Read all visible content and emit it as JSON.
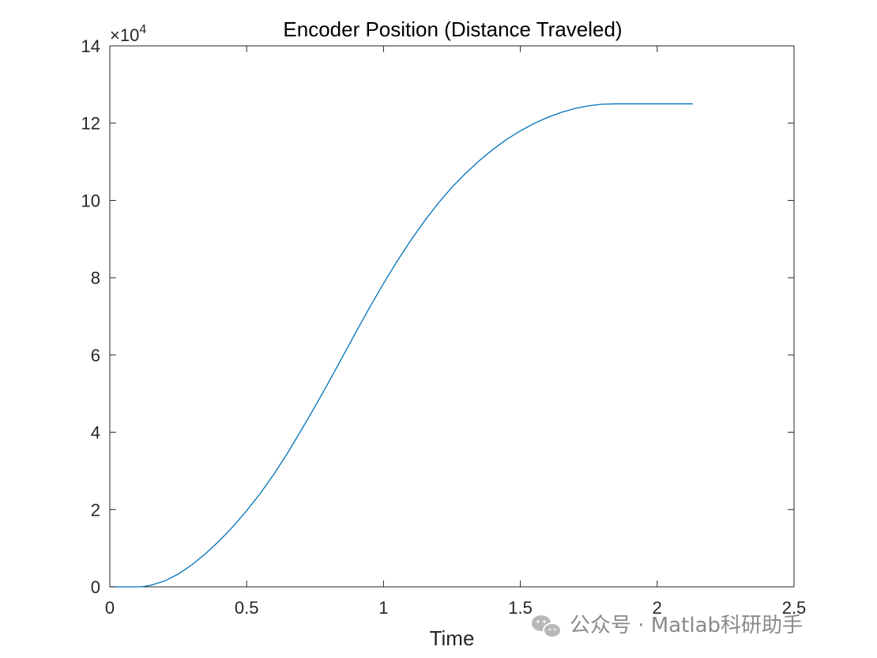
{
  "chart_data": {
    "type": "line",
    "title": "Encoder Position (Distance Traveled)",
    "xlabel": "Time",
    "ylabel": "",
    "xlim": [
      0,
      2.5
    ],
    "ylim": [
      0,
      140000
    ],
    "xticks": [
      0,
      0.5,
      1,
      1.5,
      2,
      2.5
    ],
    "xtick_labels": [
      "0",
      "0.5",
      "1",
      "1.5",
      "2",
      "2.5"
    ],
    "yticks": [
      0,
      20000,
      40000,
      60000,
      80000,
      100000,
      120000,
      140000
    ],
    "ytick_labels": [
      "0",
      "2",
      "4",
      "6",
      "8",
      "10",
      "12",
      "14"
    ],
    "y_exponent_label": "×10",
    "y_exponent_power": "4",
    "grid": false,
    "series": [
      {
        "color": "#0072BD",
        "x": [
          0,
          0.05,
          0.1,
          0.12,
          0.15,
          0.2,
          0.25,
          0.3,
          0.35,
          0.4,
          0.45,
          0.5,
          0.55,
          0.6,
          0.65,
          0.7,
          0.75,
          0.8,
          0.85,
          0.9,
          0.95,
          1.0,
          1.05,
          1.1,
          1.15,
          1.2,
          1.25,
          1.3,
          1.35,
          1.4,
          1.45,
          1.5,
          1.55,
          1.6,
          1.65,
          1.7,
          1.75,
          1.8,
          1.85,
          1.9,
          2.0,
          2.13
        ],
        "y": [
          0,
          0,
          0,
          50,
          400,
          1500,
          3300,
          5700,
          8600,
          11900,
          15600,
          19700,
          24200,
          29200,
          34700,
          40600,
          46700,
          53000,
          59500,
          66000,
          72400,
          78500,
          84300,
          89700,
          94700,
          99300,
          103400,
          107000,
          110300,
          113200,
          115800,
          118000,
          119900,
          121500,
          122800,
          123800,
          124500,
          124900,
          125000,
          125000,
          125000,
          125000
        ]
      }
    ]
  },
  "watermark": {
    "icon": "wechat-icon",
    "text": "公众号 · Matlab科研助手"
  }
}
